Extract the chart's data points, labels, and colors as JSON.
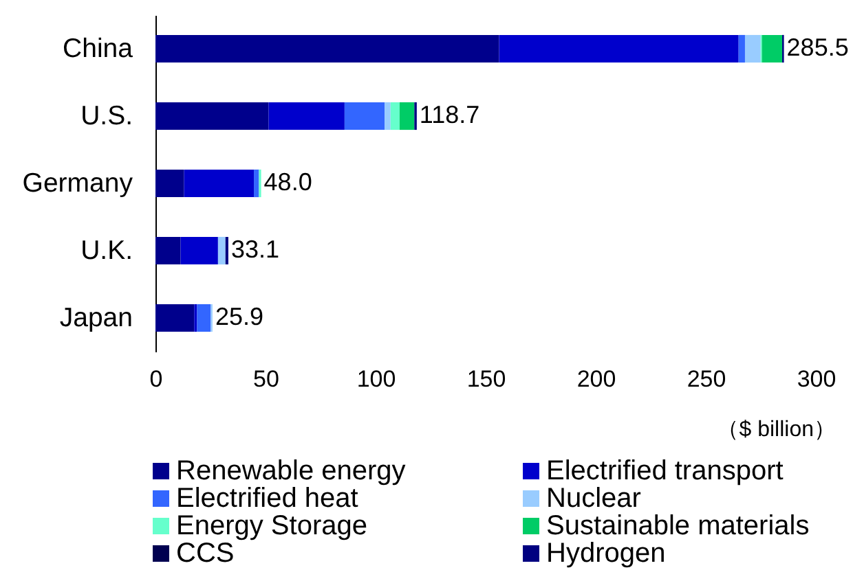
{
  "chart_data": {
    "type": "bar",
    "orientation": "horizontal",
    "stacked": true,
    "categories": [
      "China",
      "U.S.",
      "Germany",
      "U.K.",
      "Japan"
    ],
    "series": [
      {
        "name": "Renewable energy",
        "color": "#00008c",
        "values": [
          156.1,
          51.4,
          13.0,
          11.4,
          17.6
        ]
      },
      {
        "name": "Electrified transport",
        "color": "#0000cc",
        "values": [
          108.8,
          34.5,
          31.7,
          17.0,
          1.3
        ]
      },
      {
        "name": "Electrified heat",
        "color": "#3366ff",
        "values": [
          2.9,
          18.2,
          2.3,
          null,
          6.2
        ]
      },
      {
        "name": "Nuclear",
        "color": "#99ccff",
        "values": [
          7.1,
          2.7,
          null,
          3.4,
          0.8
        ]
      },
      {
        "name": "Energy Storage",
        "color": "#66ffcc",
        "values": [
          0.6,
          4.1,
          1.0,
          null,
          null
        ]
      },
      {
        "name": "Sustainable materials",
        "color": "#00cc66",
        "values": [
          9.2,
          6.7,
          null,
          null,
          null
        ]
      },
      {
        "name": "CCS",
        "color": "#000050",
        "values": [
          null,
          null,
          null,
          null,
          null
        ]
      },
      {
        "name": "Hydrogen",
        "color": "#000080",
        "values": [
          0.8,
          1.1,
          null,
          1.3,
          null
        ]
      }
    ],
    "totals": [
      "285.5",
      "118.7",
      "48.0",
      "33.1",
      "25.9"
    ],
    "xlim": [
      0,
      300
    ],
    "xticks": [
      0,
      50,
      100,
      150,
      200,
      250,
      300
    ],
    "xlabel": "（$ billion）",
    "legend": "bottom"
  }
}
